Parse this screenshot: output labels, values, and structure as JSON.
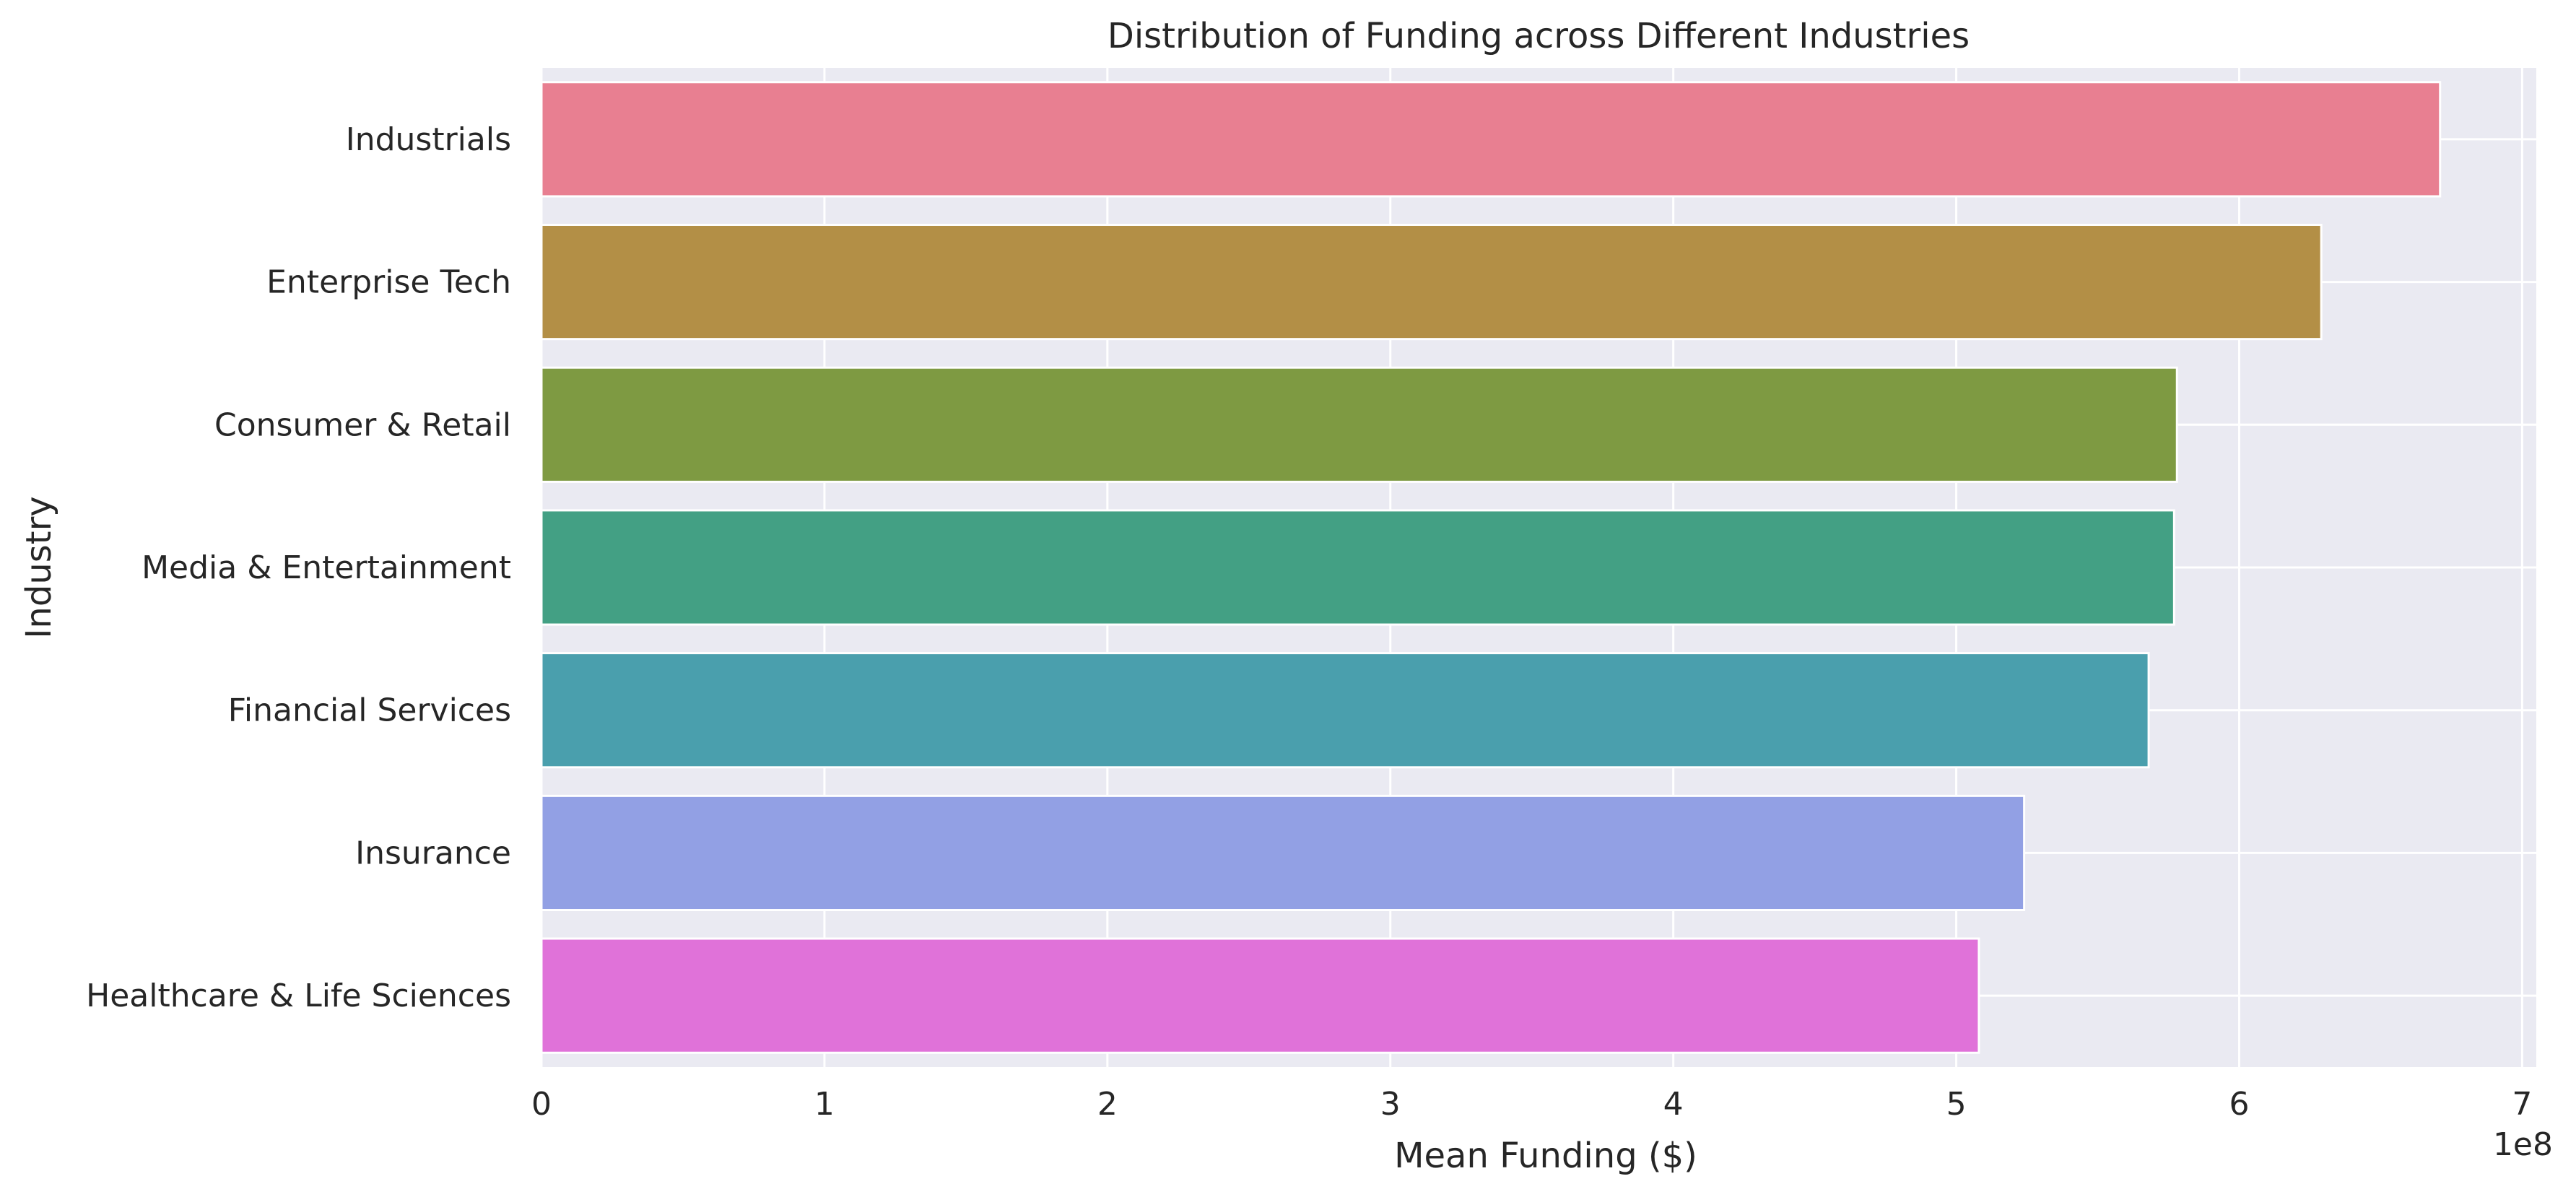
{
  "chart_data": {
    "type": "bar",
    "orientation": "horizontal",
    "title": "Distribution of Funding across Different Industries",
    "xlabel": "Mean Funding ($)",
    "ylabel": "Industry",
    "x_offset_label": "1e8",
    "x_scale": 100000000,
    "xlim": [
      0,
      7.05
    ],
    "xticks": [
      0,
      1,
      2,
      3,
      4,
      5,
      6,
      7
    ],
    "grid": true,
    "categories": [
      "Industrials",
      "Enterprise Tech",
      "Consumer & Retail",
      "Media & Entertainment",
      "Financial Services",
      "Insurance",
      "Healthcare & Life Sciences"
    ],
    "values": [
      6.71,
      6.29,
      5.78,
      5.77,
      5.68,
      5.24,
      5.08
    ],
    "colors": [
      "#e87f91",
      "#b38f46",
      "#7e9a42",
      "#43a084",
      "#4a9fad",
      "#92a0e4",
      "#e072d9"
    ]
  }
}
